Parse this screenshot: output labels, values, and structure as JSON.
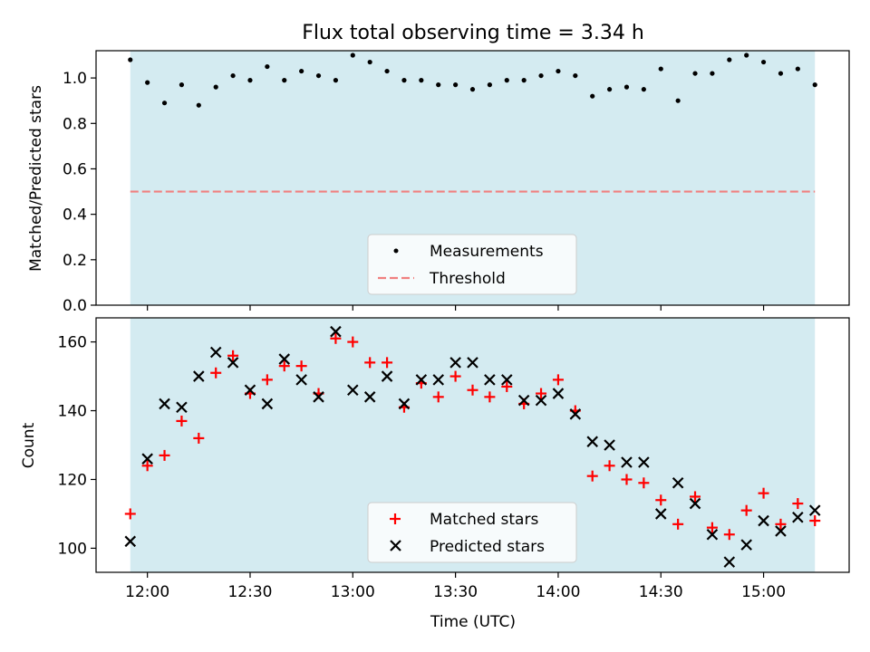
{
  "chart_data": {
    "title": "Flux total observing time = 3.34 h",
    "xlabel": "Time (UTC)",
    "x_ticks": [
      "12:00",
      "12:30",
      "13:00",
      "13:30",
      "14:00",
      "14:30",
      "15:00"
    ],
    "x_tick_minutes": [
      720,
      750,
      780,
      810,
      840,
      870,
      900
    ],
    "xlim_minutes": [
      705,
      925
    ],
    "shade_range_minutes": [
      715,
      915
    ],
    "shade_color": "#d4ebf1",
    "time_minutes": [
      715,
      720,
      725,
      730,
      735,
      740,
      745,
      750,
      755,
      760,
      765,
      770,
      775,
      780,
      785,
      790,
      795,
      800,
      805,
      810,
      815,
      820,
      825,
      830,
      835,
      840,
      845,
      850,
      855,
      860,
      865,
      870,
      875,
      880,
      885,
      890,
      895,
      900,
      905,
      910,
      915
    ],
    "panels": [
      {
        "type": "scatter",
        "ylabel": "Matched/Predicted stars",
        "ylim": [
          0,
          1.12
        ],
        "y_ticks": [
          "0.0",
          "0.2",
          "0.4",
          "0.6",
          "0.8",
          "1.0"
        ],
        "series": [
          {
            "name": "Measurements",
            "marker": "dot",
            "color": "#000000",
            "values": [
              1.08,
              0.98,
              0.89,
              0.97,
              0.88,
              0.96,
              1.01,
              0.99,
              1.05,
              0.99,
              1.03,
              1.01,
              0.99,
              1.1,
              1.07,
              1.03,
              0.99,
              0.99,
              0.97,
              0.97,
              0.95,
              0.97,
              0.99,
              0.99,
              1.01,
              1.03,
              1.01,
              0.92,
              0.95,
              0.96,
              0.95,
              1.04,
              0.9,
              1.02,
              1.02,
              1.08,
              1.1,
              1.07,
              1.02,
              1.04,
              0.97
            ]
          }
        ],
        "threshold": {
          "name": "Threshold",
          "value": 0.5,
          "color": "#f08080"
        },
        "legend_placement": "lower-center"
      },
      {
        "type": "scatter",
        "ylabel": "Count",
        "ylim": [
          93,
          167
        ],
        "y_ticks": [
          "100",
          "120",
          "140",
          "160"
        ],
        "series": [
          {
            "name": "Matched stars",
            "marker": "plus",
            "color": "#ff0000",
            "values": [
              110,
              124,
              127,
              137,
              132,
              151,
              156,
              145,
              149,
              153,
              153,
              145,
              161,
              160,
              154,
              154,
              141,
              148,
              144,
              150,
              146,
              144,
              147,
              142,
              145,
              149,
              140,
              121,
              124,
              120,
              119,
              114,
              107,
              115,
              106,
              104,
              111,
              116,
              107,
              113,
              108
            ]
          },
          {
            "name": "Predicted stars",
            "marker": "x",
            "color": "#000000",
            "values": [
              102,
              126,
              142,
              141,
              150,
              157,
              154,
              146,
              142,
              155,
              149,
              144,
              163,
              146,
              144,
              150,
              142,
              149,
              149,
              154,
              154,
              149,
              149,
              143,
              143,
              145,
              139,
              131,
              130,
              125,
              125,
              110,
              119,
              113,
              104,
              96,
              101,
              108,
              105,
              109,
              111
            ]
          }
        ],
        "legend_placement": "lower-center"
      }
    ]
  }
}
